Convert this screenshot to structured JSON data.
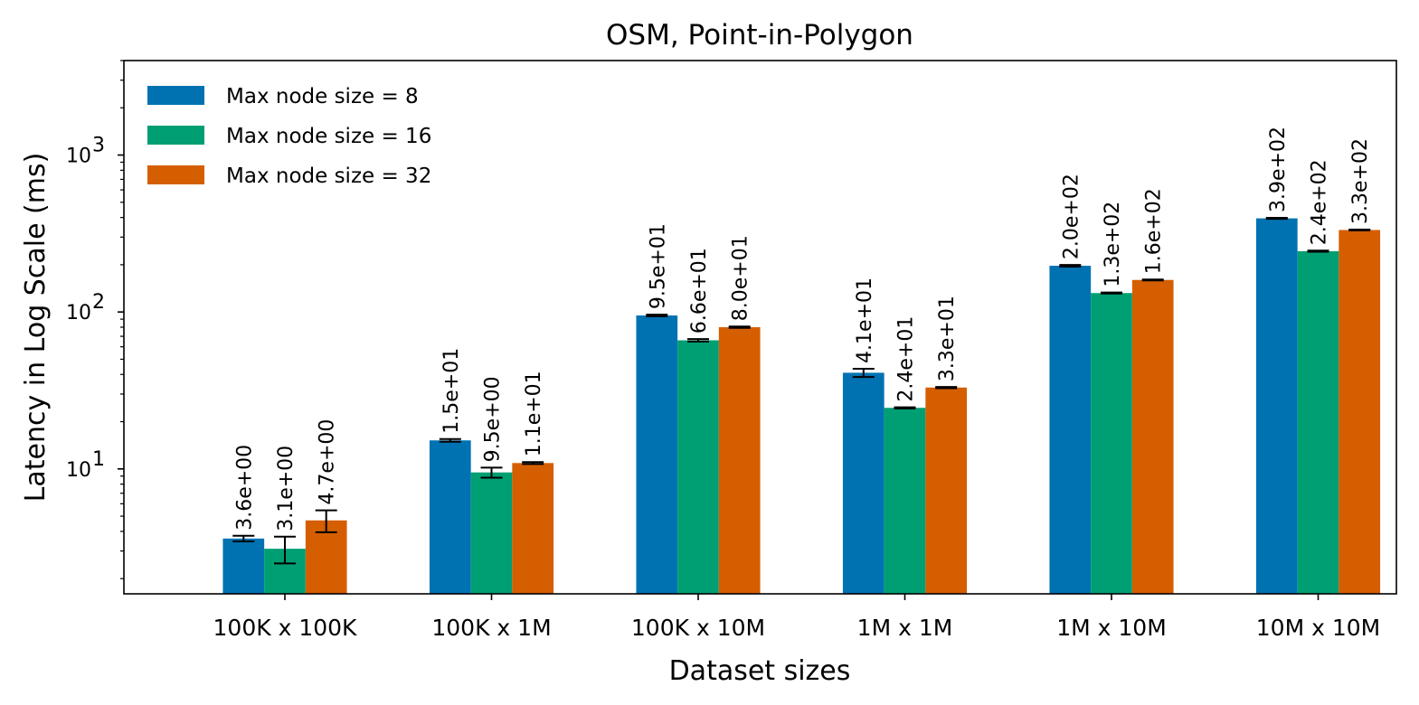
{
  "chart_data": {
    "type": "bar",
    "title": "OSM, Point-in-Polygon",
    "xlabel": "Dataset sizes",
    "ylabel": "Latency in Log Scale (ms)",
    "yscale": "log",
    "ylim": [
      1.6,
      4000
    ],
    "yticks": [
      {
        "value": 10,
        "base": "10",
        "exp": "1"
      },
      {
        "value": 100,
        "base": "10",
        "exp": "2"
      },
      {
        "value": 1000,
        "base": "10",
        "exp": "3"
      }
    ],
    "categories": [
      "100K x 100K",
      "100K x 1M",
      "100K x 10M",
      "1M x 1M",
      "1M x 10M",
      "10M x 10M"
    ],
    "legend_position": "top-left",
    "series": [
      {
        "name": "Max node size = 8",
        "color": "#0072b2",
        "values": [
          3.6,
          15.2,
          95,
          41,
          197,
          395
        ],
        "errors": [
          0.15,
          0.3,
          1.2,
          2.5,
          2.5,
          3.0
        ],
        "labels": [
          "3.6e+00",
          "1.5e+01",
          "9.5e+01",
          "4.1e+01",
          "2.0e+02",
          "3.9e+02"
        ]
      },
      {
        "name": "Max node size = 16",
        "color": "#009e73",
        "values": [
          3.1,
          9.5,
          66,
          24.5,
          132,
          244
        ],
        "errors": [
          0.6,
          0.7,
          1.2,
          0.2,
          1.0,
          2.0
        ],
        "labels": [
          "3.1e+00",
          "9.5e+00",
          "6.6e+01",
          "2.4e+01",
          "1.3e+02",
          "2.4e+02"
        ]
      },
      {
        "name": "Max node size = 32",
        "color": "#d55e00",
        "values": [
          4.7,
          10.9,
          80,
          33,
          160,
          333
        ],
        "errors": [
          0.75,
          0.15,
          0.8,
          0.3,
          1.0,
          2.0
        ],
        "labels": [
          "4.7e+00",
          "1.1e+01",
          "8.0e+01",
          "3.3e+01",
          "1.6e+02",
          "3.3e+02"
        ]
      }
    ]
  }
}
